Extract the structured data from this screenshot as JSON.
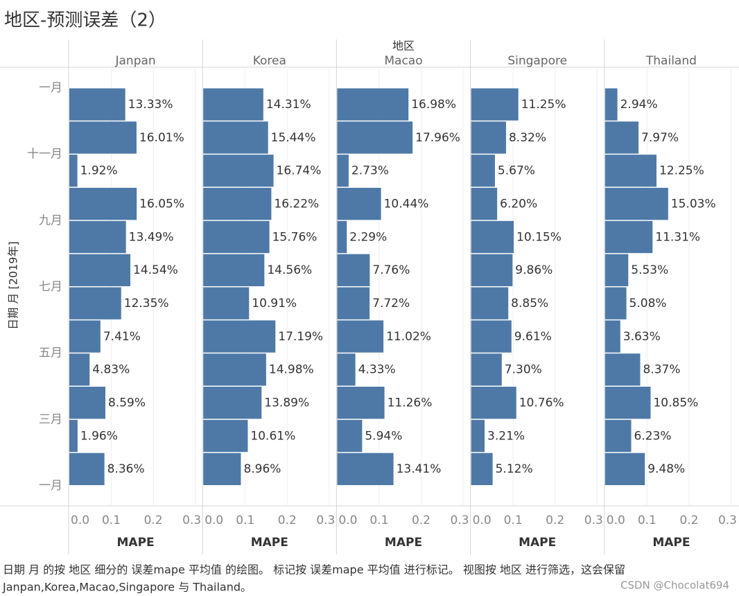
{
  "chart_data": {
    "type": "bar",
    "orientation": "horizontal",
    "title": "地区-预测误差（2）",
    "facet_label": "地区",
    "ylabel": "日期 月 [2019年]",
    "yticks": [
      "一月",
      "十一月",
      "九月",
      "七月",
      "五月",
      "三月",
      "一月"
    ],
    "xlabel": "MAPE",
    "xlim": [
      0,
      0.3
    ],
    "xticks": [
      {
        "value": 0,
        "label": "0.0"
      },
      0.1,
      0.2,
      0.3
    ],
    "grid": true,
    "color": "#4e79a7",
    "series": [
      {
        "name": "Janpan",
        "values": [
          0.1333,
          0.1601,
          0.0192,
          0.1605,
          0.1349,
          0.1454,
          0.1235,
          0.0741,
          0.0483,
          0.0859,
          0.0196,
          0.0836
        ],
        "value_labels": [
          "13.33%",
          "16.01%",
          "1.92%",
          "16.05%",
          "13.49%",
          "14.54%",
          "12.35%",
          "7.41%",
          "4.83%",
          "8.59%",
          "1.96%",
          "8.36%"
        ]
      },
      {
        "name": "Korea",
        "values": [
          0.1431,
          0.1544,
          0.1674,
          0.1622,
          0.1576,
          0.1456,
          0.1091,
          0.1719,
          0.1498,
          0.1389,
          0.1061,
          0.0896
        ],
        "value_labels": [
          "14.31%",
          "15.44%",
          "16.74%",
          "16.22%",
          "15.76%",
          "14.56%",
          "10.91%",
          "17.19%",
          "14.98%",
          "13.89%",
          "10.61%",
          "8.96%"
        ]
      },
      {
        "name": "Macao",
        "values": [
          0.1698,
          0.1796,
          0.0273,
          0.1044,
          0.0229,
          0.0776,
          0.0772,
          0.1102,
          0.0433,
          0.1126,
          0.0594,
          0.1341
        ],
        "value_labels": [
          "16.98%",
          "17.96%",
          "2.73%",
          "10.44%",
          "2.29%",
          "7.76%",
          "7.72%",
          "11.02%",
          "4.33%",
          "11.26%",
          "5.94%",
          "13.41%"
        ]
      },
      {
        "name": "Singapore",
        "values": [
          0.1125,
          0.0832,
          0.0567,
          0.062,
          0.1015,
          0.0986,
          0.0885,
          0.0961,
          0.073,
          0.1076,
          0.0321,
          0.0512
        ],
        "value_labels": [
          "11.25%",
          "8.32%",
          "5.67%",
          "6.20%",
          "10.15%",
          "9.86%",
          "8.85%",
          "9.61%",
          "7.30%",
          "10.76%",
          "3.21%",
          "5.12%"
        ]
      },
      {
        "name": "Thailand",
        "values": [
          0.0294,
          0.0797,
          0.1225,
          0.1503,
          0.1131,
          0.0553,
          0.0508,
          0.0363,
          0.0837,
          0.1085,
          0.0623,
          0.0948
        ],
        "value_labels": [
          "2.94%",
          "7.97%",
          "12.25%",
          "15.03%",
          "11.31%",
          "5.53%",
          "5.08%",
          "3.63%",
          "8.37%",
          "10.85%",
          "6.23%",
          "9.48%"
        ]
      }
    ],
    "caption": [
      "日期 月 的按 地区 细分的 误差mape 平均值 的绘图。 标记按 误差mape 平均值 进行标记。 视图按 地区 进行筛选，这会保留",
      "Janpan,Korea,Macao,Singapore 与 Thailand。"
    ],
    "watermark": "CSDN @Chocolat694"
  }
}
